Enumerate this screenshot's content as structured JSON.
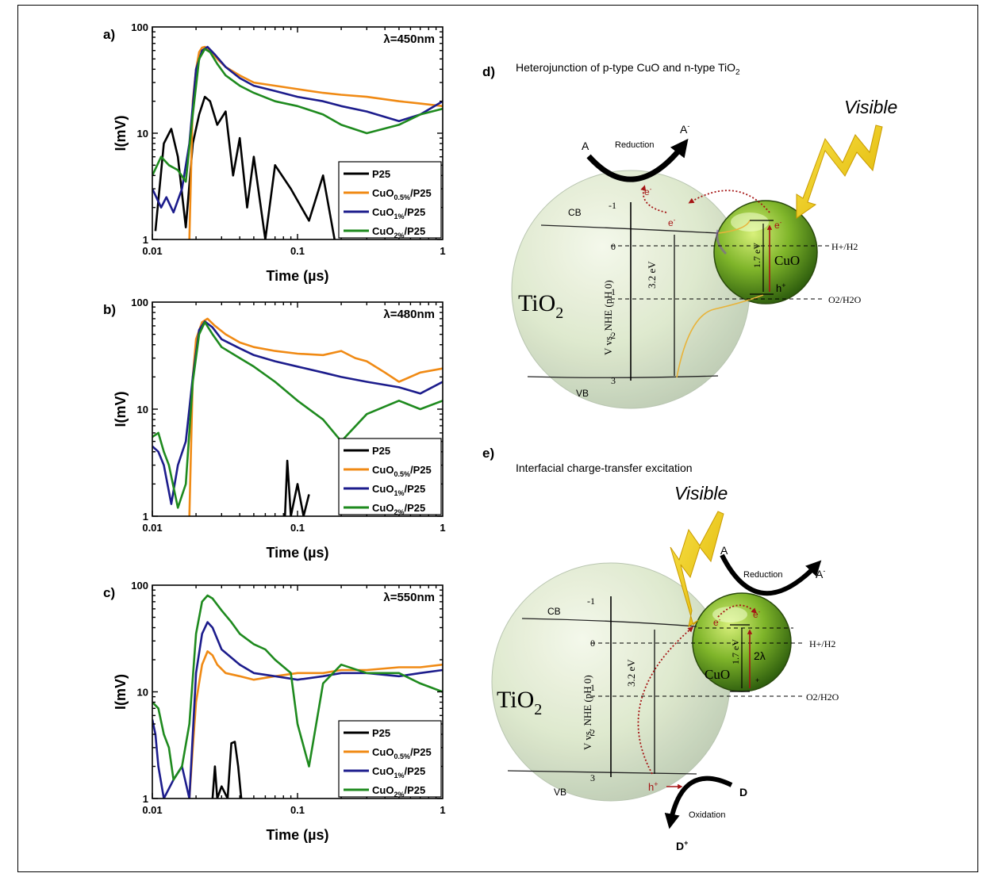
{
  "panels": [
    {
      "id": "a",
      "label": "a)",
      "wavelength": "λ=450nm"
    },
    {
      "id": "b",
      "label": "b)",
      "wavelength": "λ=480nm"
    },
    {
      "id": "c",
      "label": "c)",
      "wavelength": "λ=550nm"
    }
  ],
  "legend": [
    "P25",
    "CuO0.5%/P25",
    "CuO1%/P25",
    "CuO2%/P25"
  ],
  "chart_data": [
    {
      "type": "line",
      "panel": "a",
      "annotation": "λ=450nm",
      "xlabel": "Time (µs)",
      "ylabel": "I(mV)",
      "xscale": "log",
      "yscale": "log",
      "xlim": [
        0.01,
        1
      ],
      "ylim": [
        1,
        100
      ],
      "xticks": [
        "0.01",
        "0.1",
        "1"
      ],
      "yticks": [
        "1",
        "10",
        "100"
      ],
      "legend_position": "lower-right",
      "series": [
        {
          "name": "P25",
          "color": "#000000",
          "x": [
            0.0105,
            0.012,
            0.0135,
            0.015,
            0.017,
            0.019,
            0.021,
            0.023,
            0.025,
            0.028,
            0.032,
            0.036,
            0.04,
            0.045,
            0.05,
            0.06,
            0.07,
            0.09,
            0.12,
            0.15,
            0.18
          ],
          "y": [
            1.2,
            8,
            11,
            6,
            1.3,
            8,
            15,
            22,
            20,
            12,
            16,
            4,
            9,
            2,
            6,
            1,
            5,
            3,
            1.5,
            4,
            1
          ]
        },
        {
          "name": "CuO0.5%/P25",
          "color": "#f08a14",
          "x": [
            0.018,
            0.019,
            0.02,
            0.021,
            0.022,
            0.023,
            0.025,
            0.028,
            0.032,
            0.04,
            0.05,
            0.07,
            0.1,
            0.15,
            0.2,
            0.3,
            0.5,
            0.7,
            1.0
          ],
          "y": [
            1,
            20,
            40,
            58,
            64,
            65,
            60,
            50,
            42,
            35,
            30,
            28,
            26,
            24,
            23,
            22,
            20,
            19,
            18
          ]
        },
        {
          "name": "CuO1%/P25",
          "color": "#1c1c8c",
          "x": [
            0.01,
            0.0115,
            0.0125,
            0.014,
            0.016,
            0.018,
            0.02,
            0.022,
            0.024,
            0.027,
            0.032,
            0.04,
            0.05,
            0.07,
            0.1,
            0.15,
            0.2,
            0.3,
            0.5,
            0.7,
            1.0
          ],
          "y": [
            3,
            2,
            2.5,
            1.8,
            3,
            8,
            40,
            60,
            65,
            55,
            42,
            33,
            28,
            25,
            22,
            20,
            18,
            16,
            13,
            15,
            20
          ]
        },
        {
          "name": "CuO2%/P25",
          "color": "#1e8a1e",
          "x": [
            0.01,
            0.0115,
            0.013,
            0.015,
            0.017,
            0.019,
            0.021,
            0.023,
            0.025,
            0.028,
            0.032,
            0.04,
            0.05,
            0.07,
            0.1,
            0.15,
            0.2,
            0.3,
            0.5,
            0.7,
            1.0
          ],
          "y": [
            4,
            6,
            5,
            4.5,
            3.5,
            15,
            50,
            62,
            58,
            45,
            35,
            28,
            24,
            20,
            18,
            15,
            12,
            10,
            12,
            15,
            17
          ]
        }
      ]
    },
    {
      "type": "line",
      "panel": "b",
      "annotation": "λ=480nm",
      "xlabel": "Time (µs)",
      "ylabel": "I(mV)",
      "xscale": "log",
      "yscale": "log",
      "xlim": [
        0.01,
        1
      ],
      "ylim": [
        1,
        100
      ],
      "xticks": [
        "0.01",
        "0.1",
        "1"
      ],
      "yticks": [
        "1",
        "10",
        "100"
      ],
      "legend_position": "lower-right",
      "series": [
        {
          "name": "P25",
          "color": "#000000",
          "x": [
            0.082,
            0.085,
            0.09,
            0.1,
            0.11,
            0.12
          ],
          "y": [
            1,
            3.3,
            1,
            2,
            1,
            1.6
          ]
        },
        {
          "name": "CuO0.5%/P25",
          "color": "#f08a14",
          "x": [
            0.018,
            0.019,
            0.02,
            0.022,
            0.024,
            0.027,
            0.032,
            0.04,
            0.05,
            0.07,
            0.1,
            0.15,
            0.2,
            0.25,
            0.3,
            0.4,
            0.5,
            0.7,
            1.0
          ],
          "y": [
            1,
            20,
            45,
            65,
            70,
            60,
            50,
            42,
            38,
            35,
            33,
            32,
            35,
            30,
            28,
            22,
            18,
            22,
            24
          ]
        },
        {
          "name": "CuO1%/P25",
          "color": "#1c1c8c",
          "x": [
            0.01,
            0.011,
            0.012,
            0.0135,
            0.015,
            0.017,
            0.019,
            0.021,
            0.023,
            0.026,
            0.03,
            0.04,
            0.05,
            0.07,
            0.1,
            0.15,
            0.2,
            0.3,
            0.5,
            0.7,
            1.0
          ],
          "y": [
            4.5,
            4,
            3,
            1.3,
            3,
            5,
            20,
            55,
            66,
            58,
            45,
            37,
            32,
            28,
            25,
            22,
            20,
            18,
            16,
            14,
            18
          ]
        },
        {
          "name": "CuO2%/P25",
          "color": "#1e8a1e",
          "x": [
            0.01,
            0.011,
            0.012,
            0.013,
            0.015,
            0.017,
            0.019,
            0.021,
            0.023,
            0.026,
            0.03,
            0.04,
            0.05,
            0.07,
            0.1,
            0.15,
            0.2,
            0.3,
            0.5,
            0.7,
            1.0
          ],
          "y": [
            5.5,
            6,
            4,
            3,
            1.2,
            2,
            18,
            50,
            65,
            50,
            38,
            30,
            25,
            18,
            12,
            8,
            5,
            9,
            12,
            10,
            12
          ]
        }
      ]
    },
    {
      "type": "line",
      "panel": "c",
      "annotation": "λ=550nm",
      "xlabel": "Time (µs)",
      "ylabel": "I(mV)",
      "xscale": "log",
      "yscale": "log",
      "xlim": [
        0.01,
        1
      ],
      "ylim": [
        1,
        100
      ],
      "xticks": [
        "0.01",
        "0.1",
        "1"
      ],
      "yticks": [
        "1",
        "10",
        "100"
      ],
      "legend_position": "lower-right",
      "series": [
        {
          "name": "P25",
          "color": "#000000",
          "x": [
            0.026,
            0.027,
            0.028,
            0.03,
            0.033,
            0.035,
            0.037,
            0.039,
            0.041
          ],
          "y": [
            1,
            2,
            1,
            1.3,
            1,
            3.3,
            3.4,
            2,
            1
          ]
        },
        {
          "name": "CuO0.5%/P25",
          "color": "#f08a14",
          "x": [
            0.018,
            0.019,
            0.02,
            0.022,
            0.024,
            0.026,
            0.028,
            0.032,
            0.04,
            0.05,
            0.07,
            0.1,
            0.15,
            0.2,
            0.3,
            0.5,
            0.7,
            1.0
          ],
          "y": [
            1,
            3,
            8,
            18,
            24,
            22,
            18,
            15,
            14,
            13,
            14,
            15,
            15,
            16,
            16,
            17,
            17,
            18
          ]
        },
        {
          "name": "CuO1%/P25",
          "color": "#1c1c8c",
          "x": [
            0.01,
            0.0105,
            0.011,
            0.012,
            0.014,
            0.016,
            0.018,
            0.02,
            0.022,
            0.024,
            0.026,
            0.03,
            0.04,
            0.05,
            0.07,
            0.1,
            0.15,
            0.2,
            0.3,
            0.5,
            0.7,
            1.0
          ],
          "y": [
            5.5,
            4,
            2,
            1,
            1.5,
            2,
            1,
            15,
            35,
            45,
            40,
            25,
            18,
            15,
            14,
            13,
            14,
            15,
            15,
            14,
            15,
            16
          ]
        },
        {
          "name": "CuO2%/P25",
          "color": "#1e8a1e",
          "x": [
            0.01,
            0.011,
            0.012,
            0.013,
            0.014,
            0.016,
            0.018,
            0.02,
            0.022,
            0.024,
            0.026,
            0.03,
            0.035,
            0.04,
            0.05,
            0.06,
            0.07,
            0.09,
            0.1,
            0.12,
            0.15,
            0.2,
            0.3,
            0.5,
            0.7,
            1.0
          ],
          "y": [
            8,
            7,
            4,
            3,
            1.5,
            2,
            5,
            35,
            70,
            80,
            75,
            58,
            45,
            35,
            28,
            25,
            20,
            15,
            5,
            2,
            12,
            18,
            15,
            15,
            12,
            10
          ]
        }
      ]
    }
  ],
  "diagram_d": {
    "label": "d)",
    "title": "Heterojunction of p-type CuO and n-type TiO",
    "title_sub": "2",
    "visible": "Visible",
    "reduction": "Reduction",
    "A": "A",
    "A_minus": "A",
    "minus_sup": "-",
    "CB": "CB",
    "VB": "VB",
    "TiO": "TiO",
    "sub2": "2",
    "CuO": "CuO",
    "axis_label": "V vs. NHE (pH 0)",
    "ticks": [
      "-1",
      "0",
      "1",
      "2",
      "3"
    ],
    "gap_tio2": "3.2 eV",
    "gap_cuo": "1.7 eV",
    "e_minus": "e",
    "h_plus": "h",
    "plus_sup": "+",
    "h2_level": "H+/H2",
    "o2_level": "O2/H2O"
  },
  "diagram_e": {
    "label": "e)",
    "title": "Interfacial charge-transfer excitation",
    "visible": "Visible",
    "reduction": "Reduction",
    "oxidation": "Oxidation",
    "A": "A",
    "A_minus": "A",
    "D": "D",
    "D_plus": "D",
    "CB": "CB",
    "VB": "VB",
    "TiO": "TiO",
    "CuO": "CuO",
    "axis_label": "V vs. NHE (pH 0)",
    "ticks": [
      "-1",
      "0",
      "1",
      "2",
      "3"
    ],
    "gap_tio2": "3.2 eV",
    "gap_cuo": "1.7 eV",
    "lambda_label": "2λ",
    "h2_level": "H+/H2",
    "o2_level": "O2/H2O"
  }
}
